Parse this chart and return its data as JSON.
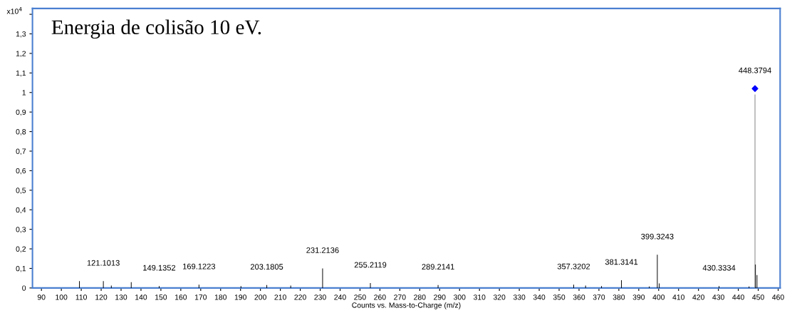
{
  "chart_data": {
    "type": "bar",
    "title": "Energia de colisão 10 eV.",
    "xlabel": "Counts vs. Mass-to-Charge (m/z)",
    "ylabel": "x10$^{4}$",
    "x": [
      109.1,
      121.1013,
      125.1,
      135.1,
      149.1352,
      169.1223,
      190.2,
      203.1805,
      215.2,
      231.2136,
      255.2119,
      289.2141,
      357.3202,
      363.3,
      371.3,
      381.3141,
      395.3,
      399.3243,
      400.3,
      430.3334,
      445.4,
      448.3794,
      448.6,
      449.38
    ],
    "series": [
      {
        "values": [
          0.035,
          0.035,
          0.012,
          0.03,
          0.01,
          0.017,
          0.01,
          0.015,
          0.012,
          0.1,
          0.025,
          0.015,
          0.017,
          0.012,
          0.01,
          0.04,
          0.008,
          0.17,
          0.023,
          0.01,
          0.008,
          0.99,
          0.12,
          0.066
        ],
        "colors": [
          "#000000",
          "#000000",
          "#000000",
          "#000000",
          "#000000",
          "#000000",
          "#000000",
          "#000000",
          "#000000",
          "#000000",
          "#000000",
          "#000000",
          "#000000",
          "#000000",
          "#000000",
          "#000000",
          "#000000",
          "#000000",
          "#000000",
          "#000000",
          "#000000",
          "#808080",
          "#000000",
          "#000000"
        ]
      },
      {
        "type": "scatter",
        "x": [
          448.3794
        ],
        "values": [
          1.02
        ],
        "color": "#0000ff",
        "marker": "diamond"
      }
    ],
    "annotations": [
      {
        "text": "121.1013",
        "x": 121.1013,
        "y": 0.035
      },
      {
        "text": "149.1352",
        "x": 149.1352,
        "y": 0.01
      },
      {
        "text": "169.1223",
        "x": 169.1223,
        "y": 0.017
      },
      {
        "text": "203.1805",
        "x": 203.1805,
        "y": 0.015
      },
      {
        "text": "231.2136",
        "x": 231.2136,
        "y": 0.1
      },
      {
        "text": "255.2119",
        "x": 255.2119,
        "y": 0.025
      },
      {
        "text": "289.2141",
        "x": 289.2141,
        "y": 0.015
      },
      {
        "text": "357.3202",
        "x": 357.3202,
        "y": 0.017
      },
      {
        "text": "381.3141",
        "x": 381.3141,
        "y": 0.04
      },
      {
        "text": "399.3243",
        "x": 399.3243,
        "y": 0.17
      },
      {
        "text": "430.3334",
        "x": 430.3334,
        "y": 0.01
      },
      {
        "text": "448.3794",
        "x": 448.3794,
        "y": 1.02
      }
    ],
    "xlim": [
      85.5,
      461
    ],
    "xticks": [
      90,
      100,
      110,
      120,
      130,
      140,
      150,
      160,
      170,
      180,
      190,
      200,
      210,
      220,
      230,
      240,
      250,
      260,
      270,
      280,
      290,
      300,
      310,
      320,
      330,
      340,
      350,
      360,
      370,
      380,
      390,
      400,
      410,
      420,
      430,
      440,
      450,
      460
    ],
    "ylim": [
      0,
      1.43
    ],
    "yticks": [
      0,
      {
        "value": 0.1,
        "label": "0,1"
      },
      {
        "value": 0.2,
        "label": "0,2"
      },
      {
        "value": 0.3,
        "label": "0,3"
      },
      {
        "value": 0.4,
        "label": "0,4"
      },
      {
        "value": 0.5,
        "label": "0,5"
      },
      {
        "value": 0.6,
        "label": "0,6"
      },
      {
        "value": 0.7,
        "label": "0,7"
      },
      {
        "value": 0.8,
        "label": "0,8"
      },
      {
        "value": 0.9,
        "label": "0,9"
      },
      1,
      {
        "value": 1.1,
        "label": "1,1"
      },
      {
        "value": 1.2,
        "label": "1,2"
      },
      {
        "value": 1.3,
        "label": "1,3"
      },
      {
        "value": 1.4,
        "label": null
      }
    ],
    "grid": false,
    "legend": false
  }
}
